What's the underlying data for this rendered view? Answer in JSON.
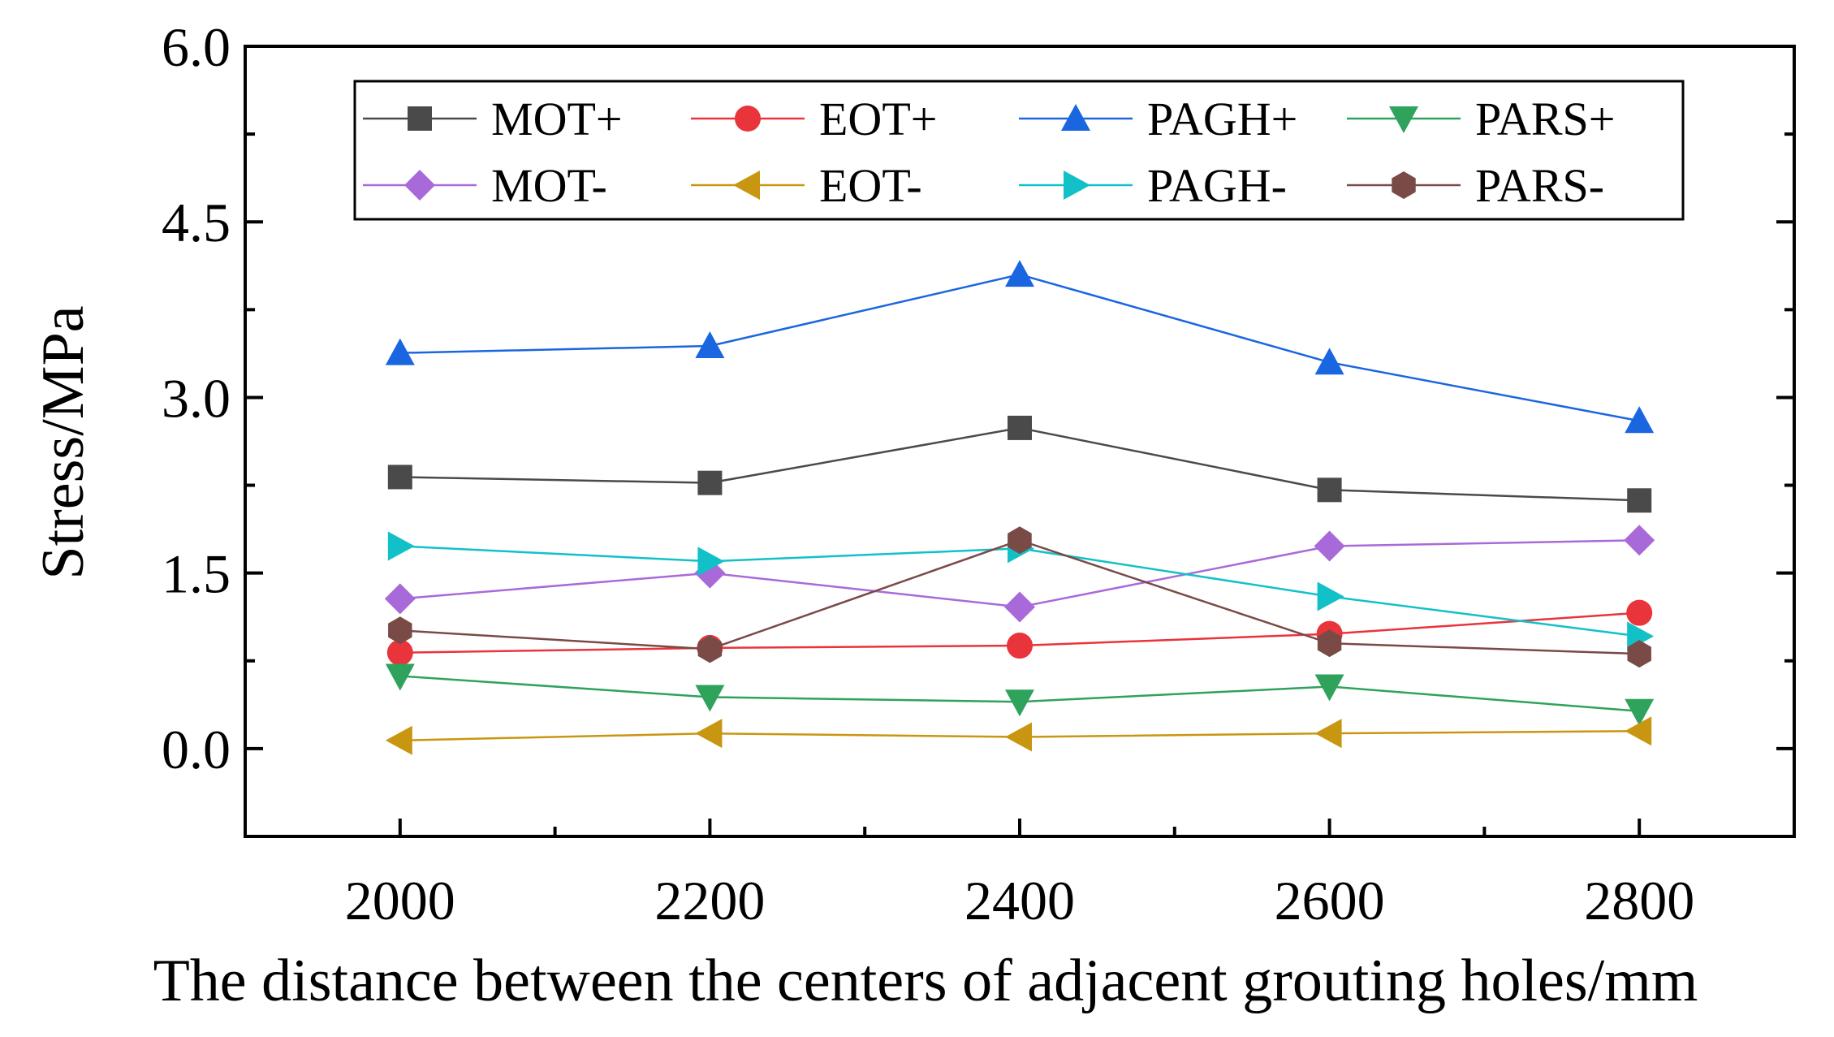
{
  "chart_data": {
    "type": "line",
    "title": "",
    "xlabel": "The distance between the centers of adjacent grouting holes/mm",
    "ylabel": "Stress/MPa",
    "xlim": [
      1900,
      2900
    ],
    "ylim": [
      -0.75,
      6.0
    ],
    "x": [
      2000,
      2200,
      2400,
      2600,
      2800
    ],
    "x_tick_labels": [
      "2000",
      "2200",
      "2400",
      "2600",
      "2800"
    ],
    "y_ticks": [
      0.0,
      1.5,
      3.0,
      4.5,
      6.0
    ],
    "y_tick_labels": [
      "0.0",
      "1.5",
      "3.0",
      "4.5",
      "6.0"
    ],
    "grid": false,
    "legend_position": "top",
    "legend_columns": 4,
    "series": [
      {
        "name": "MOT+",
        "color": "#4a4a4a",
        "marker": "square",
        "values": [
          2.32,
          2.27,
          2.74,
          2.21,
          2.12
        ]
      },
      {
        "name": "EOT+",
        "color": "#e8343a",
        "marker": "circle",
        "values": [
          0.82,
          0.86,
          0.88,
          0.98,
          1.16
        ]
      },
      {
        "name": "PAGH+",
        "color": "#1a66e0",
        "marker": "triangle-up",
        "values": [
          3.38,
          3.44,
          4.05,
          3.3,
          2.8
        ]
      },
      {
        "name": "PARS+",
        "color": "#2fa25c",
        "marker": "triangle-down",
        "values": [
          0.62,
          0.44,
          0.4,
          0.53,
          0.32
        ]
      },
      {
        "name": "MOT-",
        "color": "#a86ad8",
        "marker": "diamond",
        "values": [
          1.28,
          1.5,
          1.21,
          1.73,
          1.78
        ]
      },
      {
        "name": "EOT-",
        "color": "#c99611",
        "marker": "triangle-left",
        "values": [
          0.07,
          0.13,
          0.1,
          0.13,
          0.15
        ]
      },
      {
        "name": "PAGH-",
        "color": "#12c1c8",
        "marker": "triangle-right",
        "values": [
          1.73,
          1.6,
          1.71,
          1.3,
          0.96
        ]
      },
      {
        "name": "PARS-",
        "color": "#7a4a47",
        "marker": "hexagon",
        "values": [
          1.01,
          0.85,
          1.78,
          0.9,
          0.81
        ]
      }
    ]
  }
}
